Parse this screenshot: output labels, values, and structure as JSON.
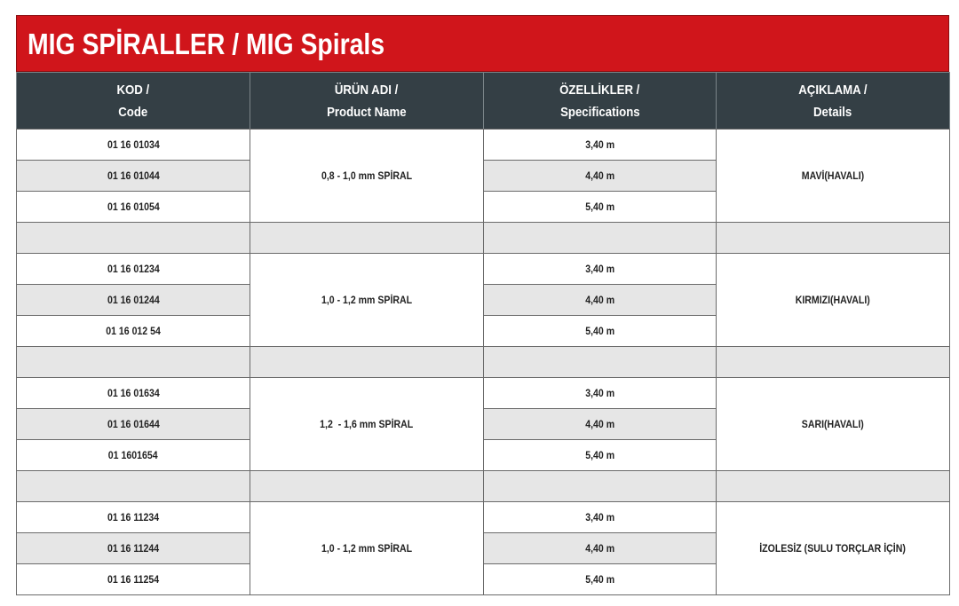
{
  "header": {
    "title": "MIG SPİRALLER / MIG Spirals"
  },
  "table": {
    "columns": [
      [
        "KOD /",
        "Code"
      ],
      [
        "ÜRÜN ADI /",
        "Product Name"
      ],
      [
        "ÖZELLİKLER /",
        "Specifications"
      ],
      [
        "AÇIKLAMA /",
        "Details"
      ]
    ],
    "groups": [
      {
        "rows": [
          [
            "01 16 01034",
            "3,40 m"
          ],
          [
            "01 16 01044",
            "4,40 m"
          ],
          [
            "01 16 01054",
            "5,40 m"
          ]
        ],
        "product": "0,8 - 1,0 mm SPİRAL",
        "details": "MAVİ(HAVALI)"
      },
      {
        "rows": [
          [
            "01 16 01234",
            "3,40 m"
          ],
          [
            "01 16 01244",
            "4,40 m"
          ],
          [
            "01 16 012 54",
            "5,40 m"
          ]
        ],
        "product": "1,0 - 1,2 mm SPİRAL",
        "details": "KIRMIZI(HAVALI)"
      },
      {
        "rows": [
          [
            "01 16 01634",
            "3,40 m"
          ],
          [
            "01 16 01644",
            "4,40 m"
          ],
          [
            "01 1601654",
            "5,40 m"
          ]
        ],
        "product": "1,2  - 1,6 mm SPİRAL",
        "details": "SARI(HAVALI)"
      },
      {
        "rows": [
          [
            "01 16 11234",
            "3,40 m"
          ],
          [
            "01 16 11244",
            "4,40 m"
          ],
          [
            "01 16 11254",
            "5,40 m"
          ]
        ],
        "product": "1,0 - 1,2 mm SPİRAL",
        "details": "İZOLESİZ (SULU TORÇLAR İÇİN)"
      }
    ]
  }
}
